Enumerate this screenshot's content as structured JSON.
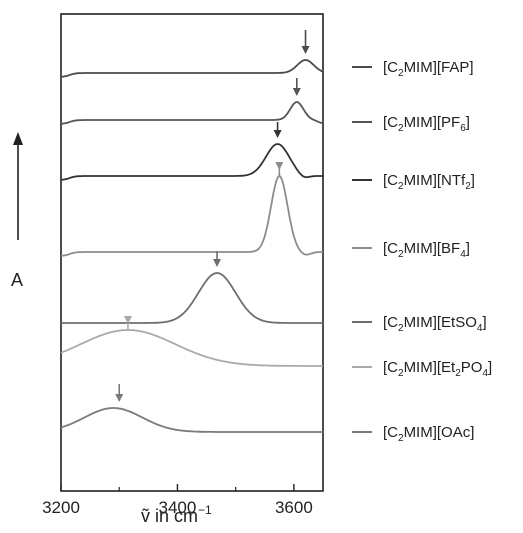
{
  "chart_data": {
    "type": "line",
    "title": "",
    "xlabel": "ṽ in cm",
    "xlabel_superscript": "−1",
    "ylabel": "A",
    "xlim": [
      3200,
      3650
    ],
    "xticks": [
      3200,
      3400,
      3600
    ],
    "grid": false,
    "legend_position": "right",
    "series": [
      {
        "key": "fap",
        "label_main": "[C",
        "label_sub": "2",
        "label_mid": "MIM][FAP",
        "label_sub2": "",
        "label_end": "]",
        "color": "#4a4a4a",
        "peak_x": 3620,
        "arrow_x": 3620
      },
      {
        "key": "pf6",
        "label_main": "[C",
        "label_sub": "2",
        "label_mid": "MIM][PF",
        "label_sub2": "6",
        "label_end": "]",
        "color": "#555555",
        "peak_x": 3605,
        "arrow_x": 3605
      },
      {
        "key": "ntf2",
        "label_main": "[C",
        "label_sub": "2",
        "label_mid": "MIM][NTf",
        "label_sub2": "2",
        "label_end": "]",
        "color": "#333333",
        "peak_x": 3572,
        "arrow_x": 3572
      },
      {
        "key": "bf4",
        "label_main": "[C",
        "label_sub": "2",
        "label_mid": "MIM][BF",
        "label_sub2": "4",
        "label_end": "]",
        "color": "#8c8c8c",
        "peak_x": 3575,
        "arrow_x": 3575
      },
      {
        "key": "etso4",
        "label_main": "[C",
        "label_sub": "2",
        "label_mid": "MIM][EtSO",
        "label_sub2": "4",
        "label_end": "]",
        "color": "#6e6e6e",
        "peak_x": 3468,
        "arrow_x": 3468
      },
      {
        "key": "et2po4",
        "label_main": "[C",
        "label_sub": "2",
        "label_mid": "MIM][Et",
        "label_sub2": "2",
        "label_mid2": "PO",
        "label_sub3": "4",
        "label_end": "]",
        "color": "#aaaaaa",
        "peak_x": 3315,
        "arrow_x": 3315
      },
      {
        "key": "oac",
        "label_main": "[C",
        "label_sub": "2",
        "label_mid": "MIM][OAc",
        "label_sub2": "",
        "label_end": "]",
        "color": "#7a7a7a",
        "peak_x": 3290,
        "arrow_x": 3300
      }
    ]
  }
}
